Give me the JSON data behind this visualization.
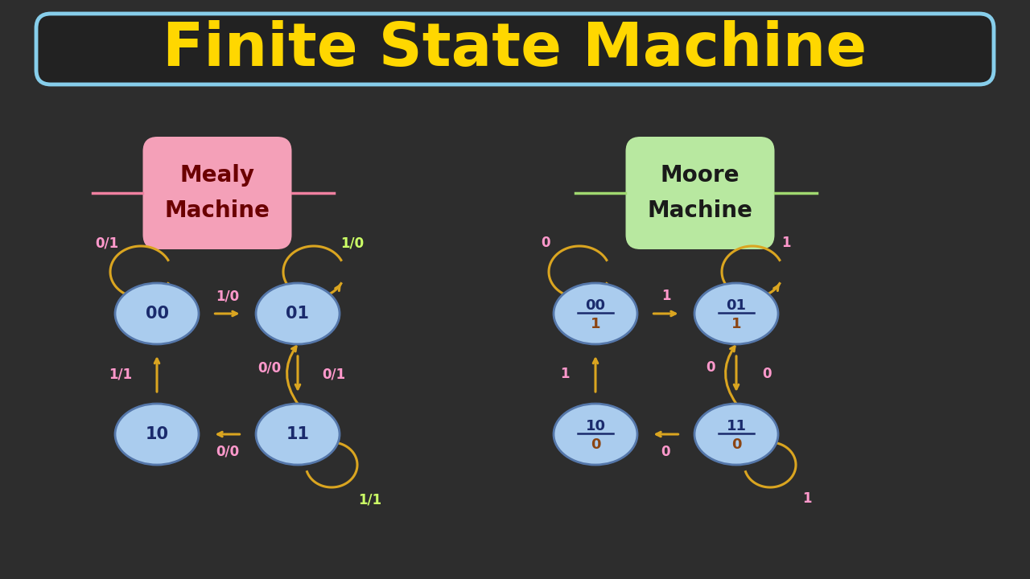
{
  "bg_color": "#2d2d2d",
  "title": "Finite State Machine",
  "title_color": "#FFD700",
  "title_box_edge": "#87CEEB",
  "node_color": "#aaccee",
  "node_edge_color": "#5577aa",
  "node_text_color": "#1a2a6c",
  "arrow_color": "#DAA520",
  "mealy_box_color": "#f4a0b8",
  "moore_box_color": "#b8e8a0",
  "mealy_wire_color": "#f080a0",
  "moore_wire_color": "#a0d870",
  "mealy_text_color": "#6b0000",
  "moore_text_color": "#1a1a1a",
  "green_label": "#ccff66",
  "pink_label": "#ff99cc",
  "moore_label_color": "#ff99cc"
}
